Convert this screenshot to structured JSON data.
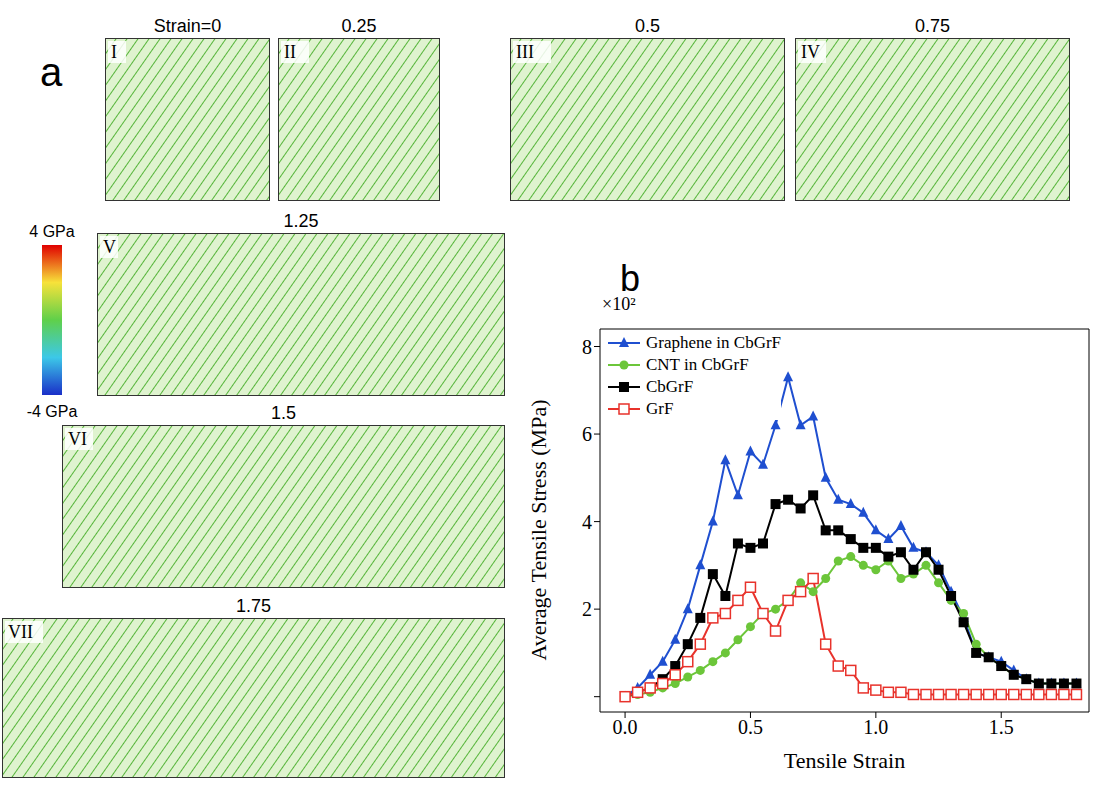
{
  "panel_a": {
    "label": "a",
    "snapshots": [
      {
        "id": "I",
        "strain_label": "Strain=0"
      },
      {
        "id": "II",
        "strain_label": "0.25"
      },
      {
        "id": "III",
        "strain_label": "0.5"
      },
      {
        "id": "IV",
        "strain_label": "0.75"
      },
      {
        "id": "V",
        "strain_label": "1.25"
      },
      {
        "id": "VI",
        "strain_label": "1.5"
      },
      {
        "id": "VII",
        "strain_label": "1.75"
      }
    ],
    "colorbar": {
      "range": [
        -4,
        4
      ],
      "ticks": [
        {
          "value": 4,
          "label": "4 GPa"
        },
        {
          "value": -4,
          "label": "-4 GPa"
        }
      ]
    }
  },
  "chart_data": {
    "type": "line",
    "label": "b",
    "x_label": "Tensile Strain",
    "y_label": "Average Tensile Stress (MPa)",
    "y_scale_note": "×10²",
    "legend": "upper left",
    "x": [
      0,
      0.05,
      0.1,
      0.15,
      0.2,
      0.25,
      0.3,
      0.35,
      0.4,
      0.45,
      0.5,
      0.55,
      0.6,
      0.65,
      0.7,
      0.75,
      0.8,
      0.85,
      0.9,
      0.95,
      1.0,
      1.05,
      1.1,
      1.15,
      1.2,
      1.25,
      1.3,
      1.35,
      1.4,
      1.45,
      1.5,
      1.55,
      1.6,
      1.65,
      1.7,
      1.75,
      1.8
    ],
    "xlim": [
      -0.1,
      1.85
    ],
    "xticks": [
      {
        "value": 0,
        "label": "0.0"
      },
      0.5,
      {
        "value": 1,
        "label": "1.0"
      },
      1.5
    ],
    "ylim": [
      -0.35,
      8.4
    ],
    "yticks": [
      0,
      2,
      4,
      6,
      8
    ],
    "series": [
      {
        "name": "Graphene in CbGrF",
        "color": "#1f4fd0",
        "marker": "triangle",
        "values": [
          0,
          0.2,
          0.5,
          0.8,
          1.3,
          2.0,
          3.0,
          4.0,
          5.4,
          4.6,
          5.6,
          5.3,
          6.2,
          7.3,
          6.2,
          6.4,
          5.0,
          4.5,
          4.4,
          4.2,
          3.8,
          3.6,
          3.9,
          3.4,
          3.3,
          3.0,
          2.4,
          1.8,
          1.0,
          0.9,
          0.8,
          0.6,
          0.4,
          0.3,
          0.3,
          0.3,
          0.3
        ]
      },
      {
        "name": "CNT in CbGrF",
        "color": "#6cc63a",
        "marker": "circle",
        "values": [
          0,
          0.05,
          0.1,
          0.2,
          0.3,
          0.45,
          0.6,
          0.8,
          1.0,
          1.3,
          1.6,
          1.9,
          2.0,
          2.2,
          2.6,
          2.4,
          2.7,
          3.1,
          3.2,
          3.0,
          2.9,
          3.1,
          2.7,
          2.8,
          3.0,
          2.6,
          2.2,
          1.9,
          1.2,
          0.9,
          0.7,
          0.5,
          0.4,
          0.3,
          0.3,
          0.3,
          0.3
        ]
      },
      {
        "name": "CbGrF",
        "color": "#000000",
        "marker": "square",
        "values": [
          0,
          0.1,
          0.2,
          0.4,
          0.7,
          1.2,
          1.8,
          2.8,
          2.3,
          3.5,
          3.4,
          3.5,
          4.4,
          4.5,
          4.3,
          4.6,
          3.8,
          3.8,
          3.6,
          3.4,
          3.4,
          3.2,
          3.3,
          2.9,
          3.3,
          2.9,
          2.3,
          1.7,
          1.0,
          0.9,
          0.7,
          0.5,
          0.4,
          0.3,
          0.3,
          0.3,
          0.3
        ]
      },
      {
        "name": "GrF",
        "color": "#e8322b",
        "marker": "open_square",
        "values": [
          0,
          0.1,
          0.2,
          0.3,
          0.5,
          0.8,
          1.2,
          1.8,
          1.9,
          2.2,
          2.5,
          1.9,
          1.5,
          2.2,
          2.4,
          2.7,
          1.2,
          0.7,
          0.6,
          0.2,
          0.15,
          0.1,
          0.1,
          0.05,
          0.05,
          0.05,
          0.05,
          0.05,
          0.05,
          0.05,
          0.05,
          0.05,
          0.05,
          0.05,
          0.05,
          0.05,
          0.05
        ]
      }
    ]
  }
}
